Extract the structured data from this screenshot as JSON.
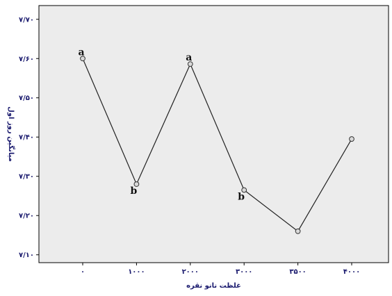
{
  "chart_data": {
    "type": "line",
    "title": "",
    "xlabel": "غلظت نانو نقره",
    "ylabel": "میانگین روز اول",
    "categories": [
      "۰",
      "۱۰۰۰",
      "۲۰۰۰",
      "۳۰۰۰",
      "۳۵۰۰",
      "۴۰۰۰"
    ],
    "values": [
      7.6,
      7.28,
      7.586,
      7.265,
      7.16,
      7.395
    ],
    "group_letters": [
      "a",
      "b",
      "a",
      "b",
      "",
      ""
    ],
    "y_ticks": [
      7.1,
      7.2,
      7.3,
      7.4,
      7.5,
      7.6,
      7.7
    ],
    "y_tick_labels": [
      "۷/۱۰",
      "۷/۲۰",
      "۷/۳۰",
      "۷/۴۰",
      "۷/۵۰",
      "۷/۶۰",
      "۷/۷۰"
    ],
    "ylim": [
      7.08,
      7.735
    ],
    "grid": false,
    "colors": {
      "plot_background": "#ececec",
      "line": "#222222",
      "marker_fill": "#d9d9d9",
      "tick_text": "#1a1a6e"
    }
  }
}
